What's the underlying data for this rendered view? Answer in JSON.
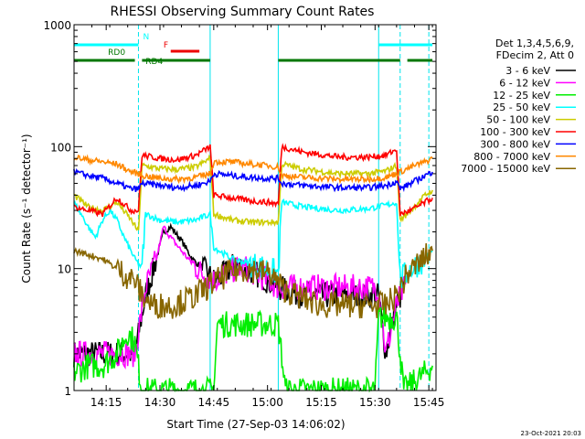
{
  "chart_data": {
    "type": "line",
    "title": "RHESSI Observing Summary Count Rates",
    "xlabel": "Start Time (27-Sep-03 14:06:02)",
    "ylabel": "Count Rate (s⁻¹ detector⁻¹)",
    "y_scale": "log",
    "ylim": [
      1,
      1000
    ],
    "xlim": [
      "14:06:02",
      "15:47:00"
    ],
    "x_ticks": [
      "14:15",
      "14:30",
      "14:45",
      "15:00",
      "15:15",
      "15:30",
      "15:45"
    ],
    "y_ticks": [
      "1",
      "10",
      "100",
      "1000"
    ],
    "footer_date": "23-Oct-2021 20:03",
    "legend_header": [
      "Det 1,3,4,5,6,9,",
      "FDecim 2, Att 0"
    ],
    "series": [
      {
        "name": "3 - 6 keV",
        "color": "#000000",
        "x": [
          "14:06",
          "14:10",
          "14:14",
          "14:18",
          "14:21",
          "14:23",
          "14:26",
          "14:29",
          "14:31",
          "14:33",
          "14:36",
          "14:39",
          "14:42",
          "14:45",
          "14:48",
          "14:51",
          "14:54",
          "14:57",
          "15:00",
          "15:03",
          "15:10",
          "15:20",
          "15:28",
          "15:31",
          "15:33",
          "15:36",
          "15:39"
        ],
        "y": [
          2,
          2,
          2,
          2,
          2,
          2,
          6,
          12,
          20,
          22,
          17,
          12,
          10,
          8,
          9,
          11,
          10,
          9,
          8,
          7,
          6,
          6,
          6,
          6,
          2,
          5,
          8
        ]
      },
      {
        "name": "6 - 12 keV",
        "color": "#ff00ff",
        "x": [
          "14:06",
          "14:10",
          "14:14",
          "14:18",
          "14:21",
          "14:23",
          "14:26",
          "14:29",
          "14:31",
          "14:33",
          "14:36",
          "14:39",
          "14:42",
          "14:45",
          "14:48",
          "14:51",
          "14:54",
          "14:57",
          "15:00",
          "15:03",
          "15:10",
          "15:20",
          "15:28",
          "15:31",
          "15:33",
          "15:36",
          "15:39"
        ],
        "y": [
          2,
          2,
          2,
          2,
          2,
          2,
          7,
          12,
          22,
          18,
          14,
          11,
          9,
          8,
          9,
          10,
          10,
          9,
          8,
          7,
          7,
          7,
          7,
          7,
          2,
          5,
          8
        ]
      },
      {
        "name": "12 - 25 keV",
        "color": "#00ee00",
        "x": [
          "14:06",
          "14:10",
          "14:14",
          "14:18",
          "14:21",
          "14:23",
          "14:25",
          "14:45",
          "14:46",
          "15:03",
          "15:05",
          "15:30",
          "15:31",
          "15:36",
          "15:38",
          "15:44",
          "15:46"
        ],
        "y": [
          1.4,
          1.6,
          1.6,
          2,
          3,
          2.5,
          1,
          1,
          3.5,
          3.5,
          1,
          1,
          4,
          4,
          1,
          1.4,
          1.6
        ]
      },
      {
        "name": "25 - 50 keV",
        "color": "#00ffff",
        "x": [
          "14:06",
          "14:08",
          "14:10",
          "14:12",
          "14:14",
          "14:16",
          "14:18",
          "14:20",
          "14:23",
          "14:25",
          "14:26",
          "14:30",
          "14:35",
          "14:40",
          "14:44",
          "14:45",
          "14:50",
          "14:55",
          "15:00",
          "15:03",
          "15:04",
          "15:10",
          "15:20",
          "15:28",
          "15:33",
          "15:36",
          "15:37",
          "15:40",
          "15:44",
          "15:46"
        ],
        "y": [
          35,
          28,
          22,
          18,
          25,
          30,
          25,
          18,
          12,
          10,
          28,
          25,
          24,
          25,
          28,
          15,
          12,
          11,
          10,
          9,
          35,
          32,
          30,
          31,
          33,
          35,
          8,
          10,
          12,
          14
        ]
      },
      {
        "name": "50 - 100 keV",
        "color": "#cccc00",
        "x": [
          "14:06",
          "14:10",
          "14:14",
          "14:18",
          "14:22",
          "14:24",
          "14:25",
          "14:30",
          "14:35",
          "14:40",
          "14:44",
          "14:45",
          "14:50",
          "14:55",
          "15:00",
          "15:03",
          "15:04",
          "15:10",
          "15:20",
          "15:28",
          "15:33",
          "15:36",
          "15:37",
          "15:40",
          "15:44",
          "15:46"
        ],
        "y": [
          40,
          32,
          30,
          35,
          25,
          20,
          70,
          66,
          65,
          68,
          80,
          28,
          25,
          24,
          24,
          24,
          72,
          65,
          60,
          60,
          63,
          70,
          25,
          30,
          40,
          44
        ]
      },
      {
        "name": "100 - 300 keV",
        "color": "#ff0000",
        "x": [
          "14:06",
          "14:10",
          "14:14",
          "14:18",
          "14:22",
          "14:24",
          "14:25",
          "14:30",
          "14:35",
          "14:40",
          "14:44",
          "14:45",
          "14:50",
          "14:55",
          "15:00",
          "15:03",
          "15:04",
          "15:10",
          "15:20",
          "15:28",
          "15:33",
          "15:36",
          "15:37",
          "15:40",
          "15:44",
          "15:46"
        ],
        "y": [
          32,
          30,
          28,
          38,
          30,
          30,
          85,
          80,
          78,
          85,
          100,
          40,
          38,
          36,
          35,
          34,
          100,
          90,
          82,
          82,
          85,
          95,
          28,
          30,
          35,
          38
        ]
      },
      {
        "name": "300 - 800 keV",
        "color": "#0000ff",
        "x": [
          "14:06",
          "14:10",
          "14:14",
          "14:18",
          "14:22",
          "14:24",
          "14:25",
          "14:30",
          "14:35",
          "14:40",
          "14:44",
          "14:45",
          "14:50",
          "14:55",
          "15:00",
          "15:03",
          "15:04",
          "15:10",
          "15:20",
          "15:28",
          "15:33",
          "15:36",
          "15:37",
          "15:40",
          "15:44",
          "15:46"
        ],
        "y": [
          62,
          58,
          55,
          50,
          45,
          45,
          50,
          48,
          46,
          48,
          52,
          60,
          58,
          56,
          55,
          55,
          50,
          48,
          46,
          46,
          48,
          52,
          45,
          50,
          58,
          62
        ]
      },
      {
        "name": "800 - 7000 keV",
        "color": "#ff8800",
        "x": [
          "14:06",
          "14:10",
          "14:14",
          "14:18",
          "14:22",
          "14:24",
          "14:25",
          "14:30",
          "14:35",
          "14:40",
          "14:44",
          "14:45",
          "14:50",
          "14:55",
          "15:00",
          "15:03",
          "15:04",
          "15:10",
          "15:20",
          "15:28",
          "15:33",
          "15:36",
          "15:37",
          "15:40",
          "15:44",
          "15:46"
        ],
        "y": [
          82,
          78,
          75,
          72,
          62,
          60,
          58,
          55,
          54,
          56,
          60,
          75,
          75,
          72,
          70,
          68,
          58,
          56,
          54,
          54,
          56,
          60,
          62,
          68,
          75,
          80
        ]
      },
      {
        "name": "7000 - 15000 keV",
        "color": "#886600",
        "x": [
          "14:06",
          "14:10",
          "14:14",
          "14:18",
          "14:20",
          "14:23",
          "14:25",
          "14:28",
          "14:31",
          "14:34",
          "14:37",
          "14:40",
          "14:43",
          "14:46",
          "14:50",
          "14:54",
          "14:58",
          "15:01",
          "15:04",
          "15:08",
          "15:15",
          "15:22",
          "15:28",
          "15:33",
          "15:36",
          "15:39",
          "15:42",
          "15:46"
        ],
        "y": [
          14,
          13,
          12,
          10,
          9,
          8,
          6,
          5,
          5,
          5,
          5.5,
          6,
          7,
          8,
          9.5,
          10,
          9.5,
          9,
          7,
          6,
          5,
          5,
          5,
          5,
          6,
          9,
          11,
          14
        ]
      }
    ],
    "bars": [
      {
        "label": "N",
        "color": "#00ffff",
        "row": "top",
        "segments": [
          [
            "14:06",
            "14:24"
          ],
          [
            "15:31",
            "15:46"
          ]
        ]
      },
      {
        "label": "F",
        "color": "#ee0000",
        "row": "flare",
        "segments": [
          [
            "14:33",
            "14:41"
          ]
        ]
      },
      {
        "label": "RD0",
        "color": "#007700",
        "row": "mid",
        "segments": [
          [
            "14:06",
            "14:23"
          ]
        ]
      },
      {
        "label": "RD4",
        "color": "#007700",
        "row": "mid",
        "segments": [
          [
            "14:25",
            "14:44"
          ],
          [
            "15:03",
            "15:37"
          ],
          [
            "15:39",
            "15:46"
          ]
        ]
      }
    ],
    "vlines": [
      {
        "time": "14:24",
        "style": "dashed"
      },
      {
        "time": "14:44",
        "style": "solid"
      },
      {
        "time": "15:03",
        "style": "solid"
      },
      {
        "time": "15:31",
        "style": "solid"
      },
      {
        "time": "15:37",
        "style": "dashed"
      },
      {
        "time": "15:45",
        "style": "dashed"
      }
    ]
  }
}
